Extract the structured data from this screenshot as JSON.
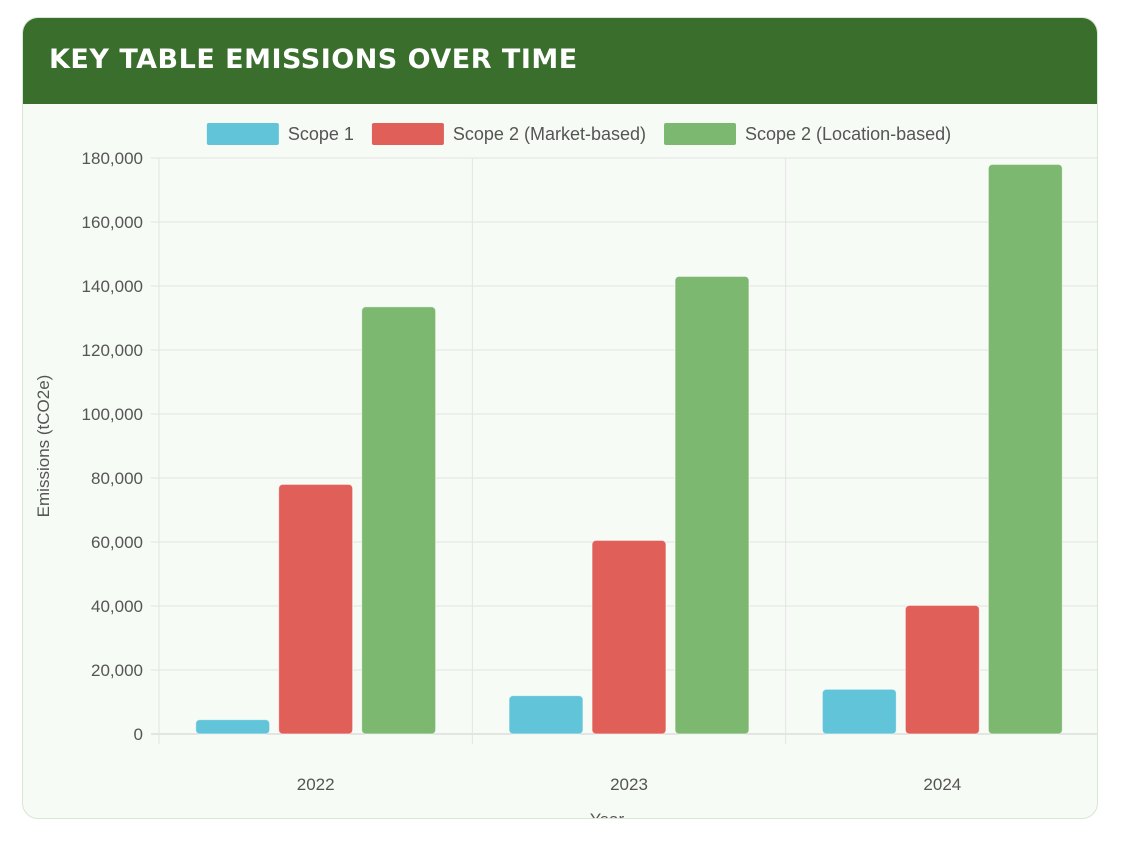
{
  "card": {
    "title": "KEY TABLE EMISSIONS OVER TIME"
  },
  "colors": {
    "header_bg": "#3a6e2d",
    "card_bg": "#f7fbf6",
    "grid": "#e3e3e3",
    "text": "#555555"
  },
  "chart_data": {
    "type": "bar",
    "categories": [
      "2022",
      "2023",
      "2024"
    ],
    "series": [
      {
        "name": "Scope 1",
        "color": "#62c4d9",
        "values": [
          4500,
          12000,
          14000
        ]
      },
      {
        "name": "Scope 2 (Market-based)",
        "color": "#e05f58",
        "values": [
          78000,
          60500,
          40200
        ]
      },
      {
        "name": "Scope 2 (Location-based)",
        "color": "#7db870",
        "values": [
          133500,
          143000,
          178000
        ]
      }
    ],
    "xlabel": "Year",
    "ylabel": "Emissions (tCO2e)",
    "ylim": [
      0,
      180000
    ],
    "ytick_step": 20000,
    "yticks": [
      "0",
      "20,000",
      "40,000",
      "60,000",
      "80,000",
      "100,000",
      "120,000",
      "140,000",
      "160,000",
      "180,000"
    ],
    "grid": true,
    "legend_position": "top"
  }
}
